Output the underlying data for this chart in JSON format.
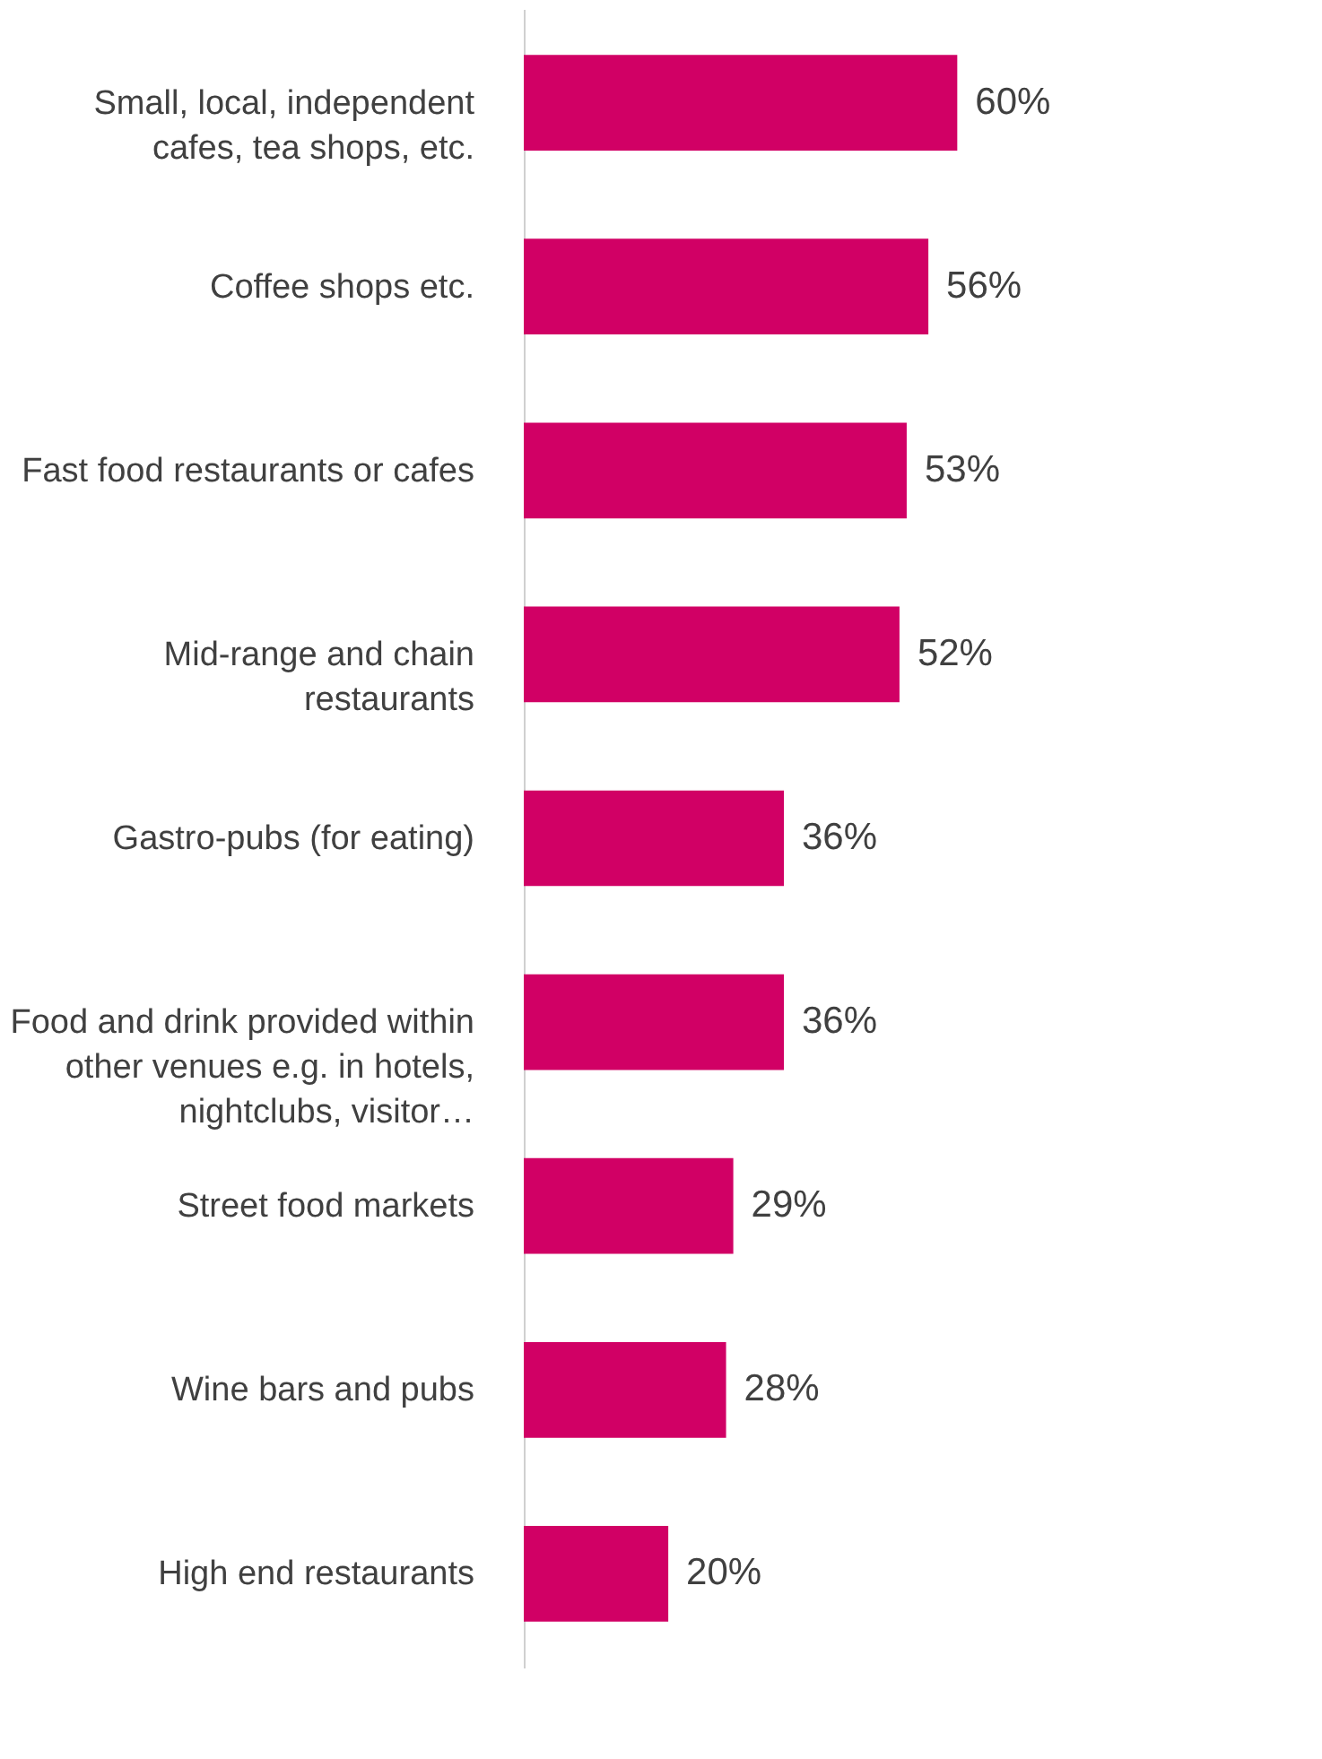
{
  "chart_data": {
    "type": "bar",
    "orientation": "horizontal",
    "categories": [
      "Small, local, independent cafes, tea shops, etc.",
      "Coffee shops etc.",
      "Fast food restaurants or cafes",
      "Mid-range and chain restaurants",
      "Gastro-pubs (for eating)",
      "Food and drink provided within other venues e.g. in hotels, nightclubs, visitor…",
      "Street food markets",
      "Wine bars and pubs",
      "High end restaurants"
    ],
    "values": [
      60,
      56,
      53,
      52,
      36,
      36,
      29,
      28,
      20
    ],
    "value_labels": [
      "60%",
      "56%",
      "53%",
      "52%",
      "36%",
      "36%",
      "29%",
      "28%",
      "20%"
    ],
    "color": "#d10065",
    "grid": false
  }
}
